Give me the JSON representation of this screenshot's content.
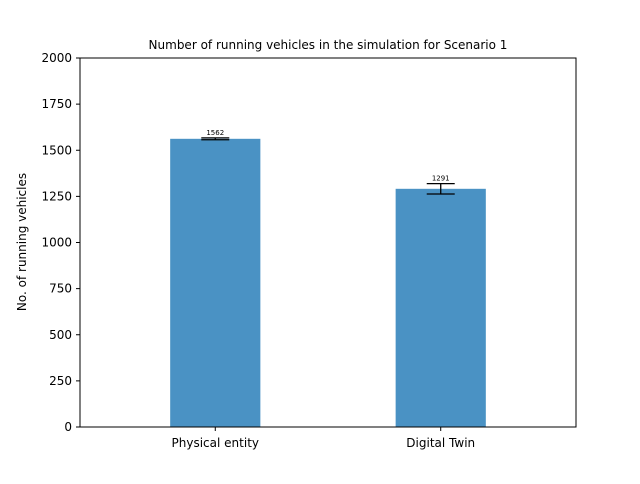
{
  "chart_data": {
    "type": "bar",
    "title": "Number of running vehicles in the simulation for Scenario 1",
    "xlabel": "",
    "ylabel": "No. of running vehicles",
    "categories": [
      "Physical entity",
      "Digital Twin"
    ],
    "values": [
      1562,
      1291
    ],
    "error": [
      5,
      28
    ],
    "data_labels": [
      "1562",
      "1291"
    ],
    "ylim": [
      0,
      2000
    ],
    "yticks": [
      0,
      250,
      500,
      750,
      1000,
      1250,
      1500,
      1750,
      2000
    ],
    "grid": false,
    "bar_color": "#4a92c4"
  }
}
